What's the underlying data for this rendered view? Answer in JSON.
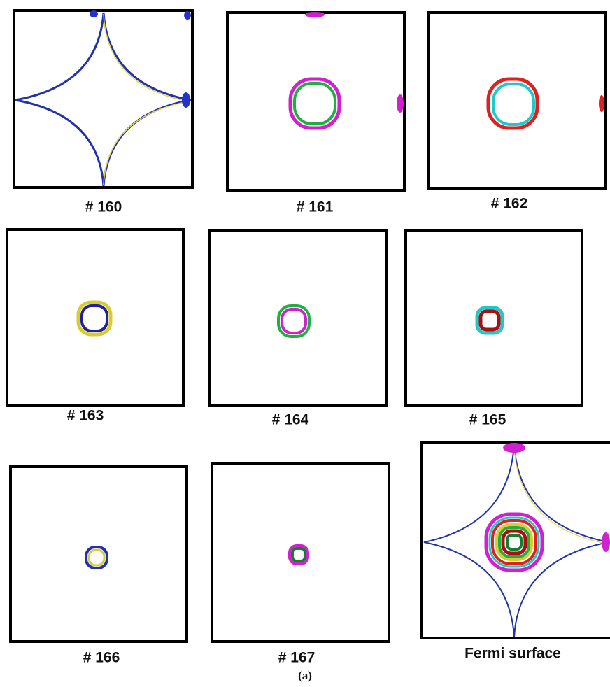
{
  "panels": [
    {
      "label": "# 160"
    },
    {
      "label": "# 161"
    },
    {
      "label": "# 162"
    },
    {
      "label": "# 163"
    },
    {
      "label": "# 164"
    },
    {
      "label": "# 165"
    },
    {
      "label": "# 166"
    },
    {
      "label": "# 167"
    },
    {
      "label": "Fermi surface"
    }
  ],
  "caption": "(a)"
}
